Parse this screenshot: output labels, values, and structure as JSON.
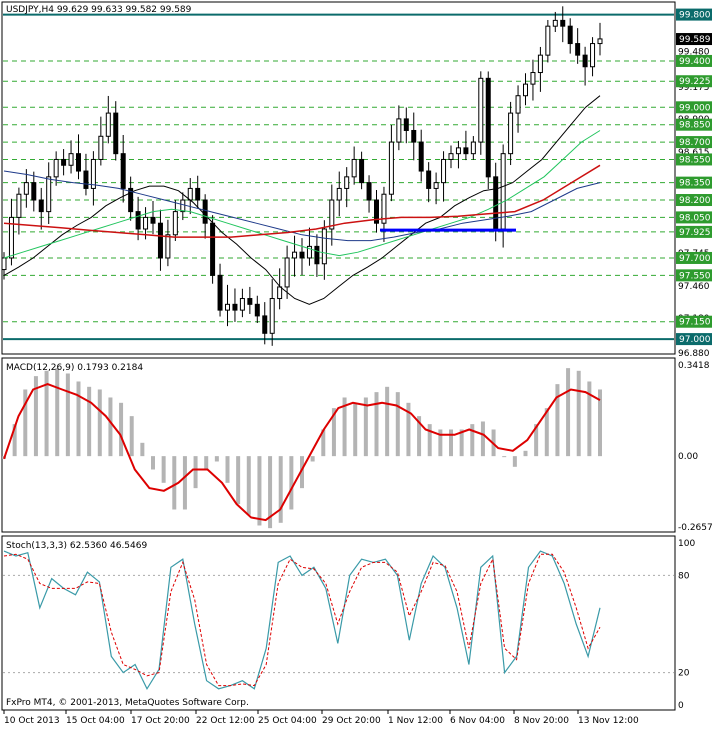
{
  "colors": {
    "background": "#ffffff",
    "candle": "#000000",
    "frame": "#000000",
    "level_line": "#0b6b6b",
    "hgrid": "#33aa33",
    "support_line": "#0000ff",
    "ma_black": "#000000",
    "ma_green": "#22c55e",
    "ma_blue": "#1e3a8a",
    "ma_red": "#cc1111",
    "macd_hist": "#b4b4b4",
    "macd_signal": "#dd0000",
    "stoch_main": "#3a9aa8",
    "stoch_signal": "#dd0000",
    "price_tag_bg": "#000000",
    "level_tag_bg": "#0b6b6b",
    "grid_tag_bg": "#2e9b2e"
  },
  "main": {
    "header": "USDJPY,H4  99.629 99.633 99.582 99.589",
    "current_price": "99.589",
    "level_high": "99.800",
    "level_low": "97.000",
    "grid_levels": [
      "99.400",
      "99.225",
      "99.000",
      "98.850",
      "98.700",
      "98.550",
      "98.350",
      "98.200",
      "98.050",
      "97.925",
      "97.700",
      "97.550",
      "97.150"
    ],
    "scale_ticks": [
      "99.480",
      "99.175",
      "98.900",
      "98.615",
      "98.345",
      "98.055",
      "97.745",
      "97.460",
      "97.180",
      "96.880"
    ]
  },
  "macd": {
    "header": "MACD(12,26,9) 0.1793 0.2184",
    "ticks": [
      "0.3418",
      "0.00",
      "-0.2657"
    ]
  },
  "stoch": {
    "header": "Stoch(13,3,3) 62.5360 46.5469",
    "ticks": [
      "100",
      "80",
      "20",
      "0"
    ]
  },
  "footer": {
    "copyright": "FxPro MT4, © 2001-2013, MetaQuotes Software Corp."
  },
  "time_axis": [
    "10 Oct 2013",
    "15 Oct 04:00",
    "17 Oct 20:00",
    "22 Oct 12:00",
    "25 Oct 04:00",
    "29 Oct 20:00",
    "1 Nov 12:00",
    "6 Nov 04:00",
    "8 Nov 20:00",
    "13 Nov 12:00"
  ],
  "chart_data": [
    {
      "type": "candlestick",
      "title": "USDJPY,H4",
      "symbol": "USDJPY",
      "timeframe": "H4",
      "last_ohlc": {
        "open": 99.629,
        "high": 99.633,
        "low": 99.582,
        "close": 99.589
      },
      "ylim": [
        96.88,
        99.9
      ],
      "horizontal_levels": [
        99.8,
        97.0
      ],
      "close_series": [
        97.7,
        98.05,
        98.25,
        98.35,
        98.2,
        98.1,
        98.4,
        98.55,
        98.5,
        98.6,
        98.45,
        98.3,
        98.55,
        98.75,
        98.95,
        98.6,
        98.3,
        98.1,
        97.95,
        98.05,
        98.0,
        97.7,
        97.9,
        98.1,
        98.2,
        98.3,
        98.2,
        98.0,
        97.55,
        97.25,
        97.3,
        97.25,
        97.35,
        97.3,
        97.2,
        97.05,
        97.35,
        97.45,
        97.7,
        97.75,
        97.7,
        97.8,
        97.65,
        97.95,
        98.2,
        98.3,
        98.4,
        98.55,
        98.35,
        98.2,
        98.0,
        98.25,
        98.7,
        98.9,
        98.8,
        98.7,
        98.45,
        98.3,
        98.35,
        98.55,
        98.6,
        98.65,
        98.6,
        98.7,
        99.25,
        98.4,
        97.95,
        98.6,
        98.95,
        99.1,
        99.2,
        99.3,
        99.45,
        99.7,
        99.75,
        99.7,
        99.55,
        99.45,
        99.35,
        99.55,
        99.59
      ],
      "moving_averages": [
        {
          "color": "black",
          "values": [
            97.55,
            97.62,
            97.7,
            97.8,
            97.9,
            97.98,
            98.05,
            98.15,
            98.22,
            98.28,
            98.32,
            98.32,
            98.28,
            98.18,
            98.05,
            97.92,
            97.82,
            97.7,
            97.6,
            97.45,
            97.35,
            97.3,
            97.35,
            97.45,
            97.55,
            97.62,
            97.7,
            97.8,
            97.9,
            98.0,
            98.05,
            98.15,
            98.22,
            98.28,
            98.3,
            98.35,
            98.45,
            98.55,
            98.7,
            98.85,
            99.0,
            99.1
          ]
        },
        {
          "color": "green",
          "values": [
            97.7,
            97.75,
            97.8,
            97.85,
            97.9,
            97.95,
            98.0,
            98.05,
            98.1,
            98.12,
            98.1,
            98.05,
            98.0,
            97.95,
            97.9,
            97.85,
            97.8,
            97.75,
            97.72,
            97.75,
            97.8,
            97.85,
            97.9,
            97.95,
            98.0,
            98.05,
            98.12,
            98.2,
            98.3,
            98.4,
            98.55,
            98.7,
            98.8
          ]
        },
        {
          "color": "blue",
          "values": [
            98.45,
            98.42,
            98.38,
            98.35,
            98.33,
            98.3,
            98.25,
            98.2,
            98.15,
            98.1,
            98.05,
            98.0,
            97.95,
            97.9,
            97.87,
            97.85,
            97.85,
            97.88,
            97.92,
            97.95,
            98.0,
            98.03,
            98.06,
            98.1,
            98.2,
            98.3,
            98.35
          ]
        },
        {
          "color": "red",
          "values": [
            98.0,
            97.98,
            97.96,
            97.94,
            97.92,
            97.9,
            97.88,
            97.88,
            97.88,
            97.9,
            97.92,
            97.95,
            98.0,
            98.03,
            98.05,
            98.05,
            98.06,
            98.08,
            98.1,
            98.2,
            98.35,
            98.5
          ]
        }
      ],
      "support_line": {
        "value": 97.94
      }
    },
    {
      "type": "line",
      "title": "MACD(12,26,9)",
      "last_values": {
        "macd": 0.1793,
        "signal": 0.2184
      },
      "ylim": [
        -0.2657,
        0.3418
      ],
      "histogram": [
        -0.01,
        0.12,
        0.25,
        0.3,
        0.32,
        0.33,
        0.31,
        0.28,
        0.26,
        0.25,
        0.22,
        0.2,
        0.15,
        0.05,
        -0.05,
        -0.1,
        -0.2,
        -0.2,
        -0.12,
        -0.05,
        -0.02,
        -0.1,
        -0.18,
        -0.22,
        -0.26,
        -0.27,
        -0.25,
        -0.2,
        -0.12,
        -0.02,
        0.1,
        0.18,
        0.22,
        0.2,
        0.22,
        0.24,
        0.26,
        0.24,
        0.2,
        0.15,
        0.12,
        0.1,
        0.1,
        0.1,
        0.12,
        0.13,
        0.1,
        0.0,
        -0.04,
        0.02,
        0.12,
        0.18,
        0.27,
        0.33,
        0.32,
        0.28,
        0.25
      ],
      "signal": [
        -0.01,
        0.15,
        0.25,
        0.27,
        0.25,
        0.23,
        0.2,
        0.15,
        0.08,
        -0.05,
        -0.12,
        -0.13,
        -0.1,
        -0.05,
        -0.05,
        -0.1,
        -0.18,
        -0.23,
        -0.24,
        -0.2,
        -0.1,
        0.0,
        0.1,
        0.18,
        0.2,
        0.19,
        0.2,
        0.19,
        0.16,
        0.1,
        0.08,
        0.08,
        0.1,
        0.08,
        0.03,
        0.02,
        0.06,
        0.14,
        0.22,
        0.25,
        0.24,
        0.21
      ]
    },
    {
      "type": "line",
      "title": "Stoch(13,3,3)",
      "last_values": {
        "main": 62.536,
        "signal": 46.5469
      },
      "ylim": [
        0,
        100
      ],
      "levels": [
        80,
        20
      ],
      "main": [
        95,
        92,
        94,
        60,
        78,
        72,
        68,
        82,
        76,
        30,
        20,
        25,
        10,
        22,
        85,
        90,
        50,
        15,
        10,
        12,
        15,
        10,
        35,
        88,
        92,
        80,
        85,
        72,
        38,
        80,
        90,
        88,
        90,
        80,
        40,
        75,
        92,
        85,
        60,
        25,
        85,
        92,
        20,
        30,
        85,
        95,
        92,
        75,
        50,
        30,
        60
      ],
      "signal": [
        92,
        93,
        90,
        75,
        72,
        72,
        72,
        76,
        75,
        45,
        25,
        22,
        18,
        20,
        70,
        88,
        65,
        25,
        12,
        12,
        13,
        12,
        25,
        75,
        90,
        85,
        84,
        75,
        50,
        70,
        85,
        88,
        88,
        82,
        55,
        70,
        88,
        86,
        70,
        35,
        75,
        90,
        35,
        28,
        75,
        93,
        93,
        82,
        60,
        35,
        48
      ]
    }
  ]
}
